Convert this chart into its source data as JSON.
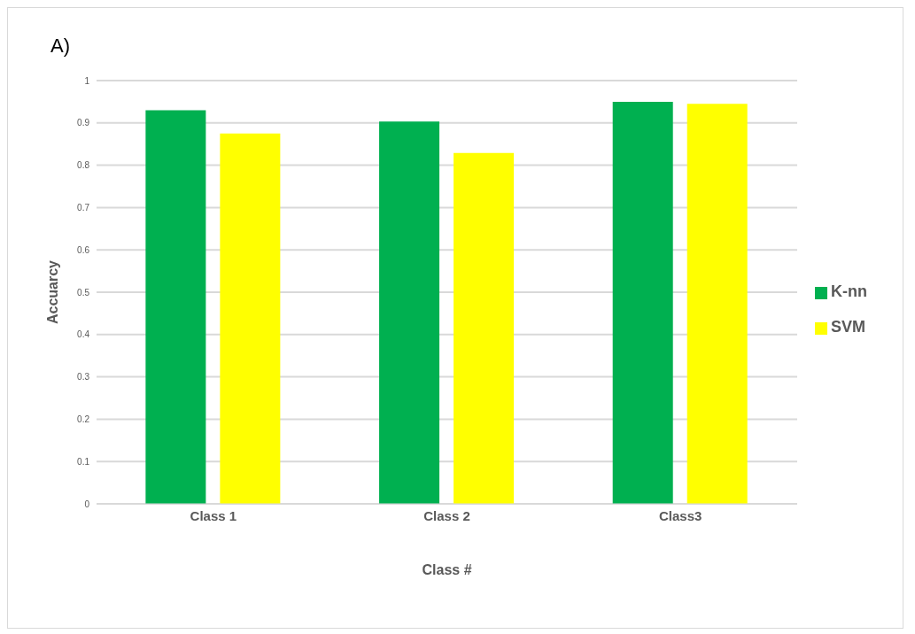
{
  "chart_data": {
    "type": "bar",
    "title": "A)",
    "xlabel": "Class #",
    "ylabel": "Accuarcy",
    "categories": [
      "Class 1",
      "Class 2",
      "Class3"
    ],
    "series": [
      {
        "name": "K-nn",
        "color": "#00b050",
        "values": [
          0.93,
          0.903,
          0.95
        ]
      },
      {
        "name": "SVM",
        "color": "#ffff00",
        "values": [
          0.875,
          0.829,
          0.945
        ]
      }
    ],
    "ylim": [
      0,
      1
    ],
    "yticks": [
      0,
      0.1,
      0.2,
      0.3,
      0.4,
      0.5,
      0.6,
      0.7,
      0.8,
      0.9,
      1
    ],
    "grid": "y",
    "legend": "right"
  }
}
